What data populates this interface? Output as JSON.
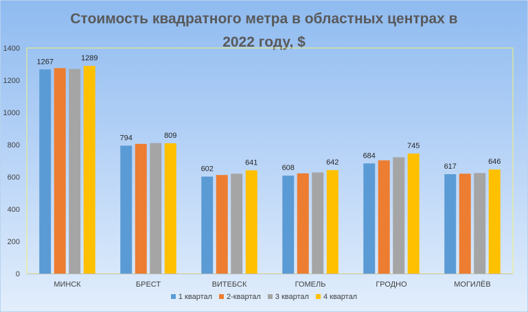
{
  "chart_data": {
    "type": "bar",
    "title_line1": "Стоимость квадратного метра в областных центрах в",
    "title_line2": "2022 году, $",
    "categories": [
      "МИНСК",
      "БРЕСТ",
      "ВИТЕБСК",
      "ГОМЕЛЬ",
      "ГРОДНО",
      "МОГИЛЁВ"
    ],
    "series": [
      {
        "name": "1  квартал",
        "color": "#5b9bd5",
        "values": [
          1267,
          794,
          602,
          608,
          684,
          617
        ]
      },
      {
        "name": "2-квартал",
        "color": "#ed7d31",
        "values": [
          1275,
          805,
          612,
          622,
          703,
          620
        ]
      },
      {
        "name": "3 квартал",
        "color": "#a5a5a5",
        "values": [
          1270,
          810,
          620,
          628,
          722,
          624
        ]
      },
      {
        "name": "4 квартал",
        "color": "#ffc000",
        "values": [
          1289,
          809,
          641,
          642,
          745,
          646
        ]
      }
    ],
    "data_labels": [
      {
        "category": 0,
        "series": 0,
        "text": "1267"
      },
      {
        "category": 0,
        "series": 3,
        "text": "1289"
      },
      {
        "category": 1,
        "series": 0,
        "text": "794"
      },
      {
        "category": 1,
        "series": 3,
        "text": "809"
      },
      {
        "category": 2,
        "series": 0,
        "text": "602"
      },
      {
        "category": 2,
        "series": 3,
        "text": "641"
      },
      {
        "category": 3,
        "series": 0,
        "text": "608"
      },
      {
        "category": 3,
        "series": 3,
        "text": "642"
      },
      {
        "category": 4,
        "series": 0,
        "text": "684"
      },
      {
        "category": 4,
        "series": 3,
        "text": "745"
      },
      {
        "category": 5,
        "series": 0,
        "text": "617"
      },
      {
        "category": 5,
        "series": 3,
        "text": "646"
      }
    ],
    "yticks": [
      "0",
      "200",
      "400",
      "600",
      "800",
      "1000",
      "1200",
      "1400"
    ],
    "ylim": [
      0,
      1400
    ],
    "xlabel": "",
    "ylabel": "",
    "grid": false,
    "legend_position": "bottom",
    "plot_area_border_color": "#f2f27a"
  }
}
